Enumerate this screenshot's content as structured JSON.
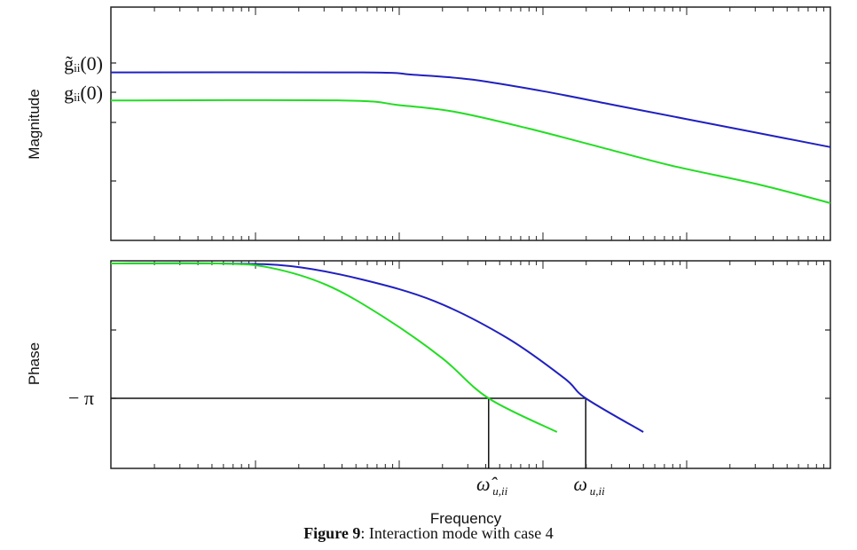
{
  "chart_data": [
    {
      "type": "line",
      "panel": "magnitude",
      "ylabel": "Magnitude",
      "ytick_labels": [
        "g̃ᵢᵢ(0)",
        "gᵢᵢ(0)"
      ],
      "x_scale": "log",
      "series": [
        {
          "color": "#2020c0",
          "points": [
            [
              0.0,
              0.72
            ],
            [
              0.35,
              0.72
            ],
            [
              0.42,
              0.71
            ],
            [
              0.5,
              0.69
            ],
            [
              0.6,
              0.64
            ],
            [
              0.7,
              0.58
            ],
            [
              0.8,
              0.52
            ],
            [
              0.9,
              0.46
            ],
            [
              1.0,
              0.4
            ]
          ]
        },
        {
          "color": "#22dd22",
          "points": [
            [
              0.0,
              0.6
            ],
            [
              0.32,
              0.6
            ],
            [
              0.4,
              0.58
            ],
            [
              0.48,
              0.55
            ],
            [
              0.58,
              0.48
            ],
            [
              0.68,
              0.4
            ],
            [
              0.78,
              0.32
            ],
            [
              0.9,
              0.24
            ],
            [
              1.0,
              0.16
            ]
          ]
        }
      ],
      "grid": false
    },
    {
      "type": "line",
      "panel": "phase",
      "ylabel": "Phase",
      "xlabel": "Frequency",
      "ytick_labels": [
        "− π"
      ],
      "x_scale": "log",
      "series": [
        {
          "color": "#2020c0",
          "points": [
            [
              0.0,
              0.0
            ],
            [
              0.15,
              0.0
            ],
            [
              0.25,
              -0.02
            ],
            [
              0.35,
              -0.12
            ],
            [
              0.45,
              -0.28
            ],
            [
              0.55,
              -0.55
            ],
            [
              0.63,
              -0.85
            ],
            [
              0.66,
              -1.0
            ],
            [
              0.74,
              -1.25
            ]
          ]
        },
        {
          "color": "#22dd22",
          "points": [
            [
              0.0,
              0.0
            ],
            [
              0.15,
              0.0
            ],
            [
              0.22,
              -0.03
            ],
            [
              0.3,
              -0.16
            ],
            [
              0.38,
              -0.4
            ],
            [
              0.46,
              -0.7
            ],
            [
              0.525,
              -1.0
            ],
            [
              0.62,
              -1.25
            ]
          ]
        }
      ],
      "reference_line": {
        "y": -1.0,
        "label": "− π"
      },
      "markers": [
        {
          "x": 0.525,
          "label_main": "ω̂",
          "label_sub": "u,ii"
        },
        {
          "x": 0.66,
          "label_main": "ω",
          "label_sub": "u,ii"
        }
      ],
      "grid": false
    }
  ],
  "caption": {
    "bold": "Figure 9",
    "text": ": Interaction mode with case 4"
  }
}
